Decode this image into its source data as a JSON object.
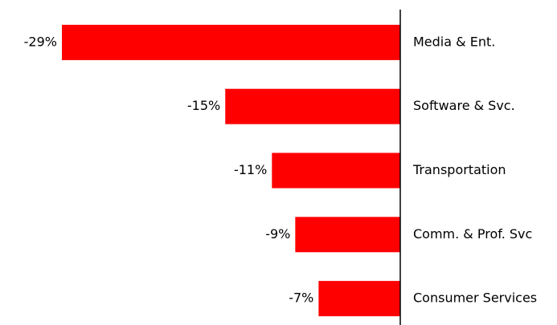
{
  "chart_data": {
    "type": "bar",
    "orientation": "horizontal",
    "categories": [
      "Media & Ent.",
      "Software & Svc.",
      "Transportation",
      "Comm. & Prof. Svc",
      "Consumer Services"
    ],
    "values": [
      -29,
      -15,
      -11,
      -9,
      -7
    ],
    "value_labels": [
      "-29%",
      "-15%",
      "-11%",
      "-9%",
      "-7%"
    ],
    "color": "#ff0000"
  }
}
